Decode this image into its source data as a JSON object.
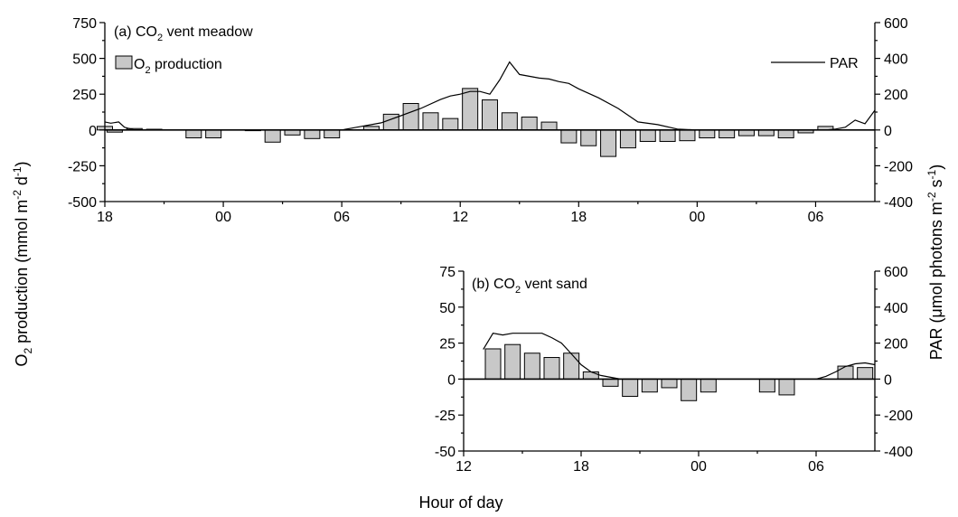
{
  "figure": {
    "ylabel_left": {
      "pre": "O",
      "sub": "2",
      "mid": " production (mmol m",
      "sup1": "-2",
      "mid2": " d",
      "sup2": "-1",
      "post": ")"
    },
    "ylabel_right": {
      "pre": "PAR (",
      "mu": "μ",
      "mid": "mol photons m",
      "sup1": "-2",
      "mid2": " s",
      "sup2": "-1",
      "post": ")"
    },
    "xlabel": "Hour of day"
  },
  "chart_data": [
    {
      "type": "bar",
      "panel": "a",
      "title": {
        "pre": "(a) CO",
        "sub": "2",
        "post": " vent meadow"
      },
      "x_ticks": [
        "18",
        "00",
        "06",
        "12",
        "18",
        "00",
        "06"
      ],
      "x_tick_hours": [
        0,
        6,
        12,
        18,
        24,
        30,
        36
      ],
      "xlim": [
        0,
        39
      ],
      "ylim": [
        -500,
        750
      ],
      "y_ticks": [
        "750",
        "500",
        "250",
        "0",
        "-250",
        "-500"
      ],
      "y_tick_values": [
        750,
        500,
        250,
        0,
        -250,
        -500
      ],
      "y2lim": [
        -400,
        600
      ],
      "y2_ticks": [
        "600",
        "400",
        "200",
        "0",
        "-200",
        "-400"
      ],
      "y2_tick_values": [
        600,
        400,
        200,
        0,
        -200,
        -400
      ],
      "legend": {
        "bar": {
          "pre": "O",
          "sub": "2",
          "post": " production"
        },
        "line": "PAR"
      },
      "bar_series": {
        "name": "O2 production",
        "x": [
          0.0,
          0.5,
          1.5,
          2.5,
          4.5,
          5.5,
          7.5,
          8.5,
          9.5,
          10.5,
          11.5,
          13.5,
          14.5,
          15.5,
          16.5,
          17.5,
          18.5,
          19.5,
          20.5,
          21.5,
          22.5,
          23.5,
          24.5,
          25.5,
          26.5,
          27.5,
          28.5,
          29.5,
          30.5,
          31.5,
          32.5,
          33.5,
          34.5,
          35.5,
          36.5,
          37.5,
          38.5
        ],
        "values": [
          25,
          -15,
          10,
          5,
          -55,
          -55,
          -5,
          -85,
          -35,
          -60,
          -55,
          25,
          110,
          185,
          120,
          80,
          290,
          210,
          120,
          90,
          55,
          -90,
          -110,
          -185,
          -125,
          -80,
          -80,
          -75,
          -55,
          -55,
          -40,
          -40,
          -55,
          -20,
          25,
          0,
          0
        ]
      },
      "line_series": {
        "name": "PAR",
        "x": [
          0,
          0.3,
          0.7,
          1.0,
          1.5,
          2.0,
          3.0,
          4.0,
          5.0,
          6.0,
          7.0,
          8.0,
          9.0,
          10.0,
          11.0,
          12.0,
          12.5,
          13.0,
          13.5,
          14.0,
          15.0,
          16.0,
          17.0,
          17.5,
          18.0,
          18.5,
          19.0,
          19.5,
          20.0,
          20.5,
          21.0,
          22.0,
          22.5,
          23.0,
          23.5,
          24.0,
          25.0,
          26.0,
          27.0,
          28.0,
          29.0,
          30.0,
          31.0,
          32.0,
          33.0,
          34.0,
          35.0,
          36.0,
          36.5,
          37.0,
          37.5,
          38.0,
          38.5,
          39.0
        ],
        "values": [
          45,
          38,
          45,
          15,
          0,
          0,
          0,
          0,
          0,
          0,
          0,
          0,
          0,
          0,
          0,
          0,
          10,
          20,
          30,
          40,
          80,
          120,
          170,
          190,
          200,
          215,
          215,
          200,
          280,
          380,
          310,
          290,
          285,
          270,
          260,
          230,
          180,
          120,
          45,
          30,
          5,
          0,
          0,
          0,
          0,
          0,
          0,
          0,
          0,
          5,
          15,
          55,
          35,
          110
        ]
      }
    },
    {
      "type": "bar",
      "panel": "b",
      "title": {
        "pre": "(b) CO",
        "sub": "2",
        "post": " vent sand"
      },
      "x_ticks": [
        "12",
        "18",
        "00",
        "06"
      ],
      "x_tick_hours": [
        0,
        6,
        12,
        18
      ],
      "xlim": [
        0,
        21
      ],
      "ylim": [
        -50,
        75
      ],
      "y_ticks": [
        "75",
        "50",
        "25",
        "0",
        "-25",
        "-50"
      ],
      "y_tick_values": [
        75,
        50,
        25,
        0,
        -25,
        -50
      ],
      "y2lim": [
        -400,
        600
      ],
      "y2_ticks": [
        "600",
        "400",
        "200",
        "0",
        "-200",
        "-400"
      ],
      "y2_tick_values": [
        600,
        400,
        200,
        0,
        -200,
        -400
      ],
      "bar_series": {
        "name": "O2 production",
        "x": [
          1.5,
          2.5,
          3.5,
          4.5,
          5.5,
          6.5,
          7.5,
          8.5,
          9.5,
          10.5,
          11.5,
          12.5,
          15.5,
          16.5,
          19.5,
          20.5
        ],
        "values": [
          21,
          24,
          18,
          15,
          18,
          5,
          -5,
          -12,
          -9,
          -6,
          -15,
          -9,
          -9,
          -11,
          9,
          8
        ]
      },
      "line_series": {
        "name": "PAR",
        "x": [
          1.0,
          1.5,
          2.0,
          2.5,
          3.0,
          3.5,
          4.0,
          4.5,
          5.0,
          5.5,
          6.0,
          6.5,
          7.0,
          7.5,
          8.0,
          9.0,
          10.0,
          11.0,
          12.0,
          13.0,
          14.0,
          15.0,
          16.0,
          17.0,
          18.0,
          18.5,
          19.0,
          19.5,
          20.0,
          20.5,
          21.0
        ],
        "values": [
          165,
          255,
          245,
          255,
          255,
          255,
          255,
          230,
          200,
          140,
          80,
          40,
          20,
          10,
          0,
          0,
          0,
          0,
          0,
          0,
          0,
          0,
          0,
          0,
          0,
          15,
          40,
          70,
          85,
          90,
          80
        ]
      }
    }
  ]
}
